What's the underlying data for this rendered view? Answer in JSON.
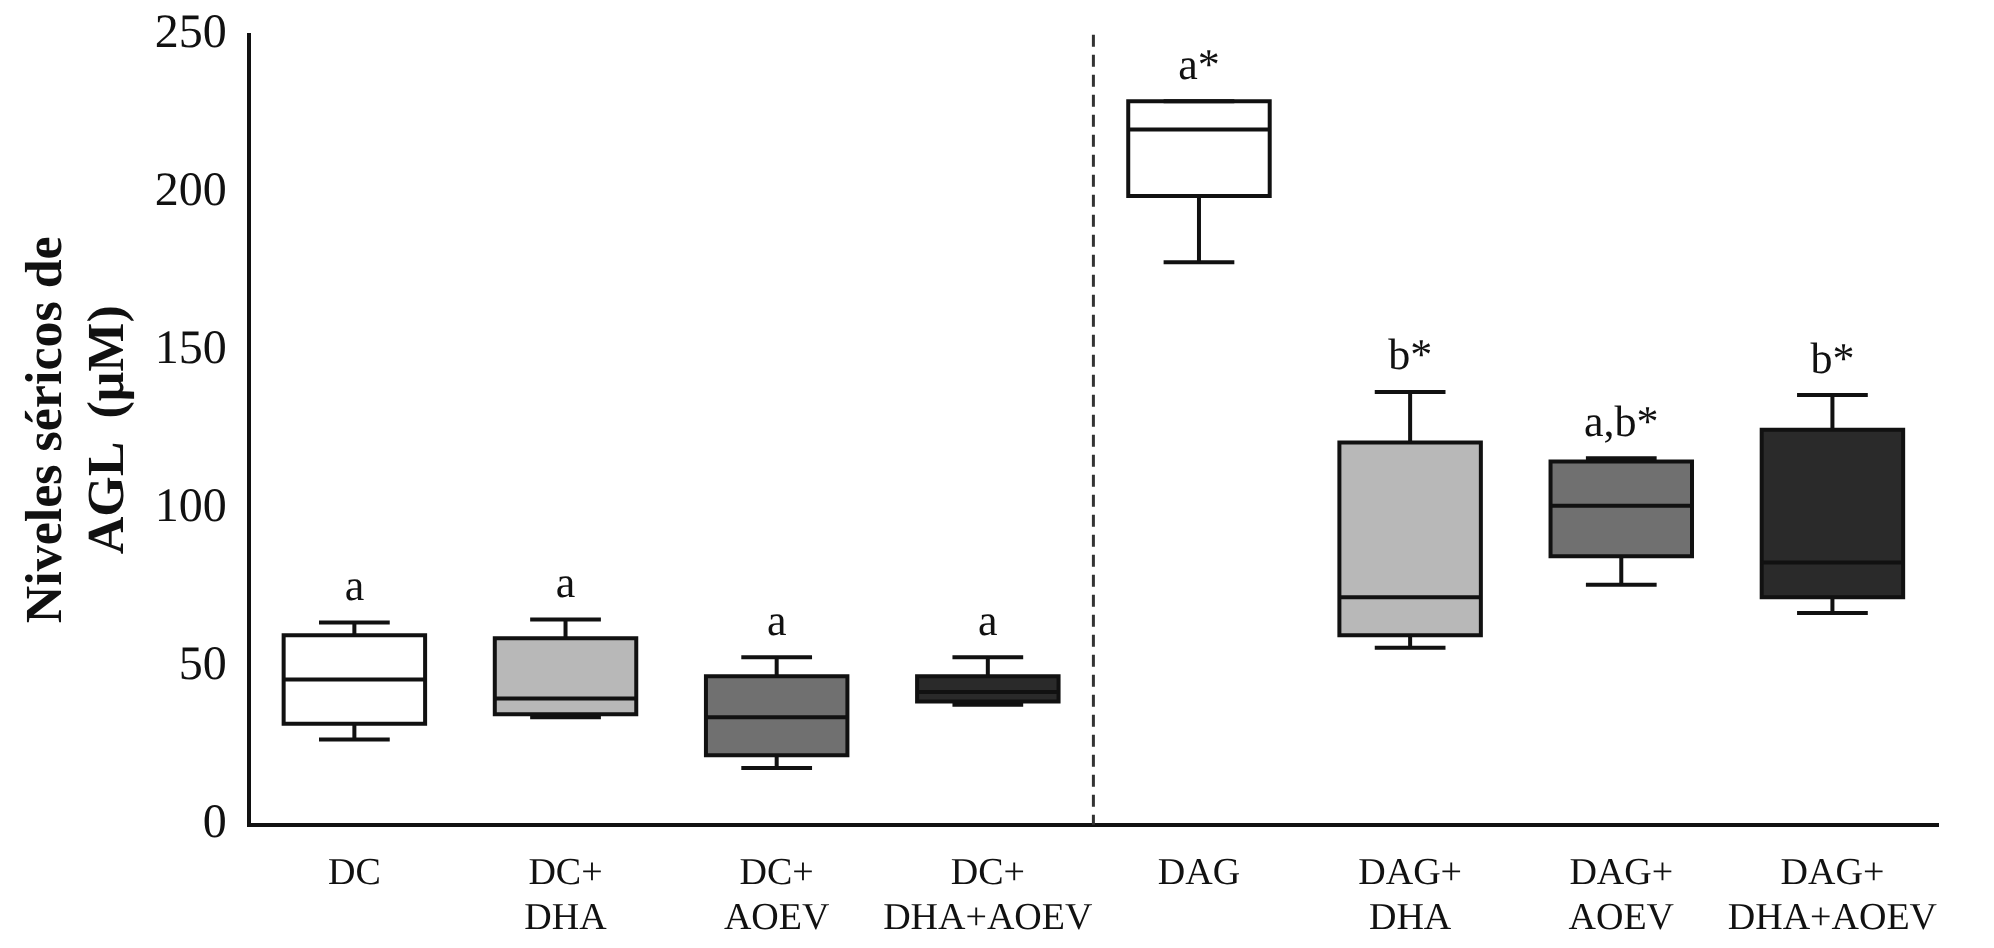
{
  "chart_data": {
    "type": "box",
    "ylabel": "Niveles séricos de\nAGL  (μM)",
    "categories": [
      "DC",
      "DC+\nDHA",
      "DC+\nAOEV",
      "DC+\nDHA+AOEV",
      "DAG",
      "DAG+\nDHA",
      "DAG+\nAOEV",
      "DAG+\nDHA+AOEV"
    ],
    "colors": [
      "#ffffff",
      "#b8b8b8",
      "#707070",
      "#2a2a2a",
      "#ffffff",
      "#b8b8b8",
      "#707070",
      "#2a2a2a"
    ],
    "boxes": [
      {
        "low": 27,
        "q1": 32,
        "median": 46,
        "q3": 60,
        "high": 64
      },
      {
        "low": 34,
        "q1": 35,
        "median": 40,
        "q3": 59,
        "high": 65
      },
      {
        "low": 18,
        "q1": 22,
        "median": 34,
        "q3": 47,
        "high": 53
      },
      {
        "low": 38,
        "q1": 39,
        "median": 42,
        "q3": 47,
        "high": 53
      },
      {
        "low": 178,
        "q1": 199,
        "median": 220,
        "q3": 229,
        "high": 229
      },
      {
        "low": 56,
        "q1": 60,
        "median": 72,
        "q3": 121,
        "high": 137
      },
      {
        "low": 76,
        "q1": 85,
        "median": 101,
        "q3": 115,
        "high": 116
      },
      {
        "low": 67,
        "q1": 72,
        "median": 83,
        "q3": 125,
        "high": 136
      }
    ],
    "ylim": [
      0,
      250
    ],
    "yticks": [
      0,
      50,
      100,
      150,
      200,
      250
    ],
    "grid": false,
    "legend": false,
    "annotations": [
      {
        "text": "a",
        "x": "DC",
        "y": 64
      },
      {
        "text": "a",
        "x": "DC+\nDHA",
        "y": 65
      },
      {
        "text": "a",
        "x": "DC+\nAOEV",
        "y": 53
      },
      {
        "text": "a",
        "x": "DC+\nDHA+AOEV",
        "y": 53
      },
      {
        "text": "a*",
        "x": "DAG",
        "y": 229
      },
      {
        "text": "b*",
        "x": "DAG+\nDHA",
        "y": 137
      },
      {
        "text": "a,b*",
        "x": "DAG+\nAOEV",
        "y": 116
      },
      {
        "text": "b*",
        "x": "DAG+\nDHA+AOEV",
        "y": 136
      }
    ]
  }
}
